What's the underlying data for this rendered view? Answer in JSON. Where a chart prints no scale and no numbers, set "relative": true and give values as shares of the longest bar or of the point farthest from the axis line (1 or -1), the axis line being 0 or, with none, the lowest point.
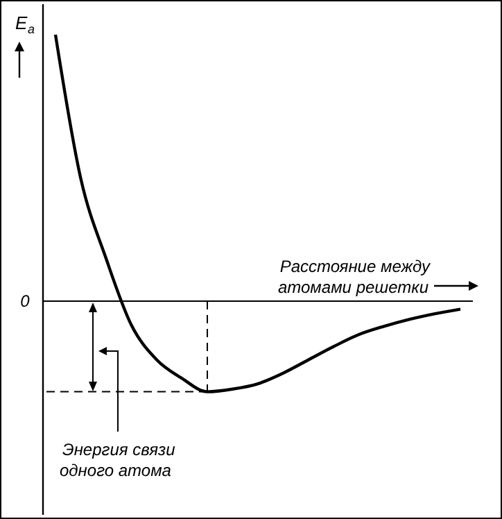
{
  "chart_data": {
    "type": "line",
    "relative": true,
    "ylabel": "E$_{a}$",
    "xlabel": "Расстояние между атомами решетки",
    "categories": [
      null,
      null,
      null,
      null,
      null,
      null,
      null,
      null,
      null,
      null,
      null,
      null,
      null,
      null,
      null,
      null,
      null
    ],
    "series": [
      {
        "color": "#000000",
        "values": [
          1.0,
          0.46,
          0.16,
          -0.09,
          -0.22,
          -0.29,
          -0.34,
          -0.33,
          -0.31,
          -0.27,
          -0.22,
          -0.17,
          -0.125,
          -0.094,
          -0.068,
          -0.047,
          -0.03
        ]
      }
    ],
    "ref_lines": [
      {
        "axis": "y",
        "value": -0.34,
        "line_style": "dashed"
      }
    ],
    "annotations": [
      "0",
      "Энергия связи одного атома"
    ],
    "marker": "none",
    "line_style": "solid"
  }
}
